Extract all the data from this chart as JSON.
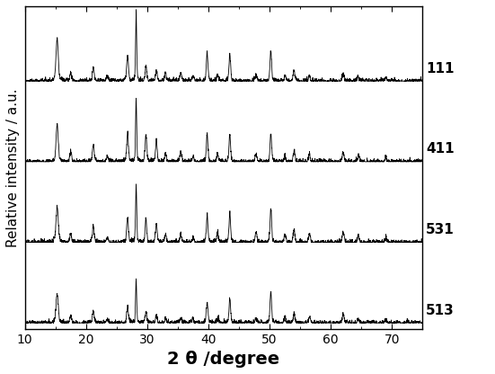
{
  "title": "",
  "xlabel": "2 θ /degree",
  "ylabel": "Relative intensity / a.u.",
  "xlim": [
    10,
    75
  ],
  "xticks": [
    10,
    20,
    30,
    40,
    50,
    60,
    70
  ],
  "labels": [
    "111",
    "411",
    "531",
    "513"
  ],
  "offsets": [
    2.1,
    1.4,
    0.7,
    0.0
  ],
  "peak_positions": [
    15.3,
    17.5,
    21.2,
    23.5,
    26.8,
    28.2,
    29.8,
    31.5,
    33.0,
    35.5,
    37.5,
    39.8,
    41.5,
    43.5,
    47.8,
    50.2,
    52.5,
    54.0,
    56.5,
    62.0,
    64.5,
    69.0
  ],
  "peak_heights_111": [
    0.85,
    0.18,
    0.28,
    0.1,
    0.5,
    1.4,
    0.3,
    0.22,
    0.15,
    0.18,
    0.1,
    0.6,
    0.12,
    0.55,
    0.12,
    0.6,
    0.1,
    0.2,
    0.12,
    0.15,
    0.1,
    0.08
  ],
  "peak_heights_411": [
    0.75,
    0.2,
    0.35,
    0.12,
    0.55,
    1.3,
    0.55,
    0.45,
    0.18,
    0.2,
    0.12,
    0.58,
    0.15,
    0.52,
    0.15,
    0.58,
    0.12,
    0.22,
    0.15,
    0.18,
    0.12,
    0.08
  ],
  "peak_heights_531": [
    0.72,
    0.18,
    0.32,
    0.1,
    0.5,
    1.2,
    0.48,
    0.4,
    0.16,
    0.18,
    0.1,
    0.55,
    0.2,
    0.6,
    0.2,
    0.7,
    0.15,
    0.25,
    0.18,
    0.2,
    0.12,
    0.08
  ],
  "peak_heights_513": [
    0.6,
    0.15,
    0.25,
    0.08,
    0.3,
    0.9,
    0.2,
    0.15,
    0.1,
    0.12,
    0.08,
    0.4,
    0.1,
    0.5,
    0.1,
    0.65,
    0.1,
    0.18,
    0.12,
    0.16,
    0.1,
    0.06
  ],
  "peak_widths": [
    0.25,
    0.2,
    0.2,
    0.2,
    0.2,
    0.12,
    0.18,
    0.18,
    0.2,
    0.2,
    0.2,
    0.18,
    0.2,
    0.18,
    0.2,
    0.18,
    0.2,
    0.2,
    0.2,
    0.22,
    0.22,
    0.22
  ],
  "noise_level": 0.03,
  "background_color": "#ffffff",
  "line_color": "#000000",
  "line_width": 0.6,
  "label_fontsize": 11,
  "xlabel_fontsize": 14,
  "ylabel_fontsize": 11
}
